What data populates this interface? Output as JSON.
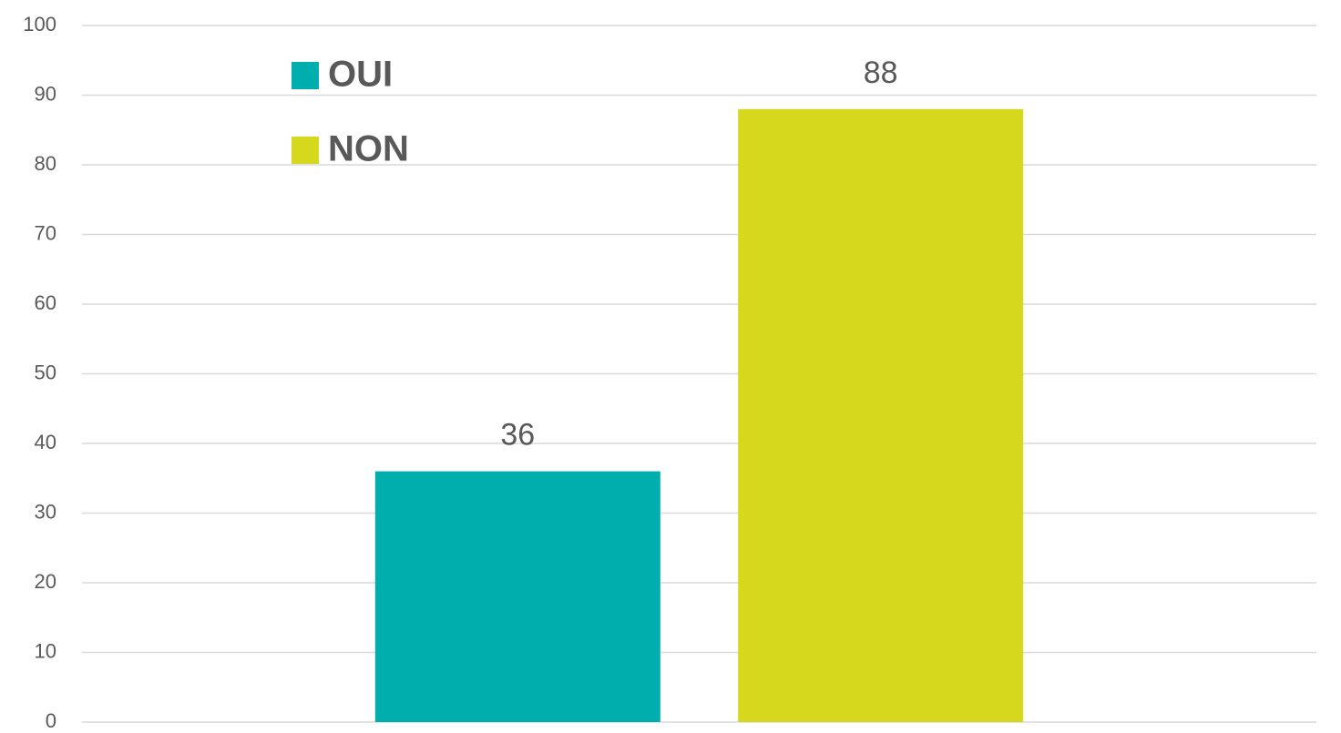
{
  "chart_data": {
    "type": "bar",
    "categories": [
      null
    ],
    "series": [
      {
        "name": "OUI",
        "color": "#00AEAE",
        "values": [
          36
        ]
      },
      {
        "name": "NON",
        "color": "#D5D81C",
        "values": [
          88
        ]
      }
    ],
    "ylim": [
      0,
      100
    ],
    "yticks": [
      0,
      10,
      20,
      30,
      40,
      50,
      60,
      70,
      80,
      90,
      100
    ],
    "grid": true,
    "legend": "upper left"
  }
}
